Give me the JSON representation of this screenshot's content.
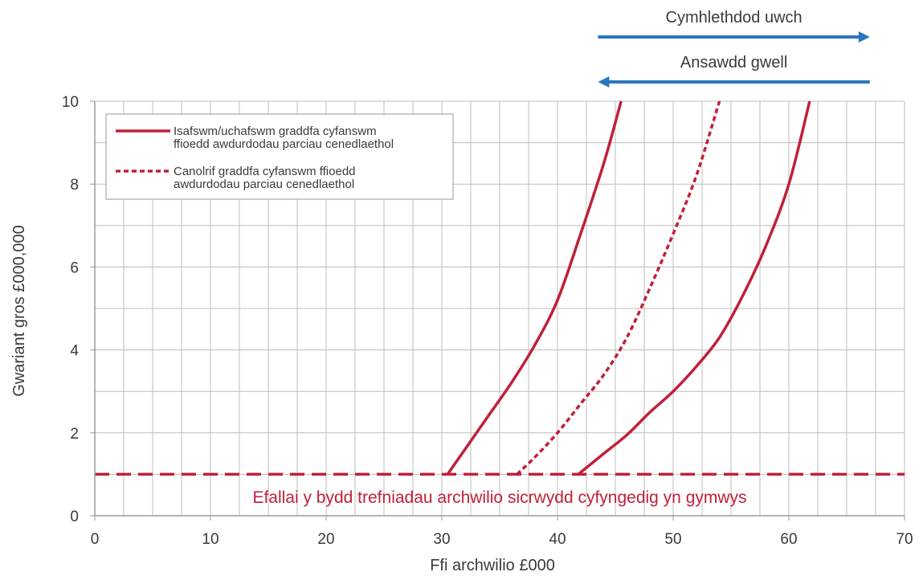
{
  "colors": {
    "series": "#c0203a",
    "arrow": "#2a77be",
    "grid": "#bdbdbd",
    "axis": "#9a9a9a",
    "text": "#3a3a3a"
  },
  "chart_data": {
    "type": "line",
    "xlabel": "Ffi archwilio £000",
    "ylabel": "Gwariant gros £000,000",
    "xlim": [
      0,
      70
    ],
    "ylim": [
      0,
      10
    ],
    "xticks": [
      0,
      10,
      20,
      30,
      40,
      50,
      60,
      70
    ],
    "yticks": [
      0,
      2,
      4,
      6,
      8,
      10
    ],
    "x_minor_step": 2.5,
    "y_minor_step": 1,
    "grid": true,
    "legend_position": "top-left",
    "legend": [
      {
        "label_lines": [
          "Isafswm/uchafswm graddfa cyfanswm",
          "ffioedd awdurdodau parciau cenedlaethol"
        ],
        "style": "solid"
      },
      {
        "label_lines": [
          "Canolrif graddfa cyfanswm ffioedd",
          "awdurdodau parciau cenedlaethol"
        ],
        "style": "dotted"
      }
    ],
    "series": [
      {
        "style": "solid",
        "points": [
          [
            30.5,
            1.0
          ],
          [
            32,
            1.6
          ],
          [
            34,
            2.4
          ],
          [
            36,
            3.2
          ],
          [
            38,
            4.1
          ],
          [
            40,
            5.2
          ],
          [
            42,
            6.8
          ],
          [
            44,
            8.5
          ],
          [
            45.5,
            10.0
          ]
        ]
      },
      {
        "style": "dotted",
        "points": [
          [
            36.5,
            1.0
          ],
          [
            38,
            1.4
          ],
          [
            40,
            2.0
          ],
          [
            42,
            2.7
          ],
          [
            44,
            3.4
          ],
          [
            46,
            4.3
          ],
          [
            48,
            5.5
          ],
          [
            50,
            6.8
          ],
          [
            52,
            8.2
          ],
          [
            54,
            10.0
          ]
        ]
      },
      {
        "style": "solid",
        "points": [
          [
            41.8,
            1.0
          ],
          [
            44,
            1.5
          ],
          [
            46,
            1.95
          ],
          [
            48,
            2.5
          ],
          [
            50,
            3.0
          ],
          [
            52,
            3.6
          ],
          [
            54,
            4.3
          ],
          [
            56,
            5.3
          ],
          [
            58,
            6.5
          ],
          [
            60,
            8.0
          ],
          [
            61.8,
            10.0
          ]
        ]
      }
    ],
    "threshold": {
      "y": 1,
      "style": "dashed"
    },
    "annotation": "Efallai y bydd trefniadau archwilio sicrwydd cyfyngedig yn gymwys",
    "arrows": [
      {
        "label": "Cymhlethdod uwch",
        "direction": "right",
        "x_from": 43.5,
        "x_to": 67
      },
      {
        "label": "Ansawdd gwell",
        "direction": "left",
        "x_from": 67,
        "x_to": 43.5
      }
    ]
  }
}
